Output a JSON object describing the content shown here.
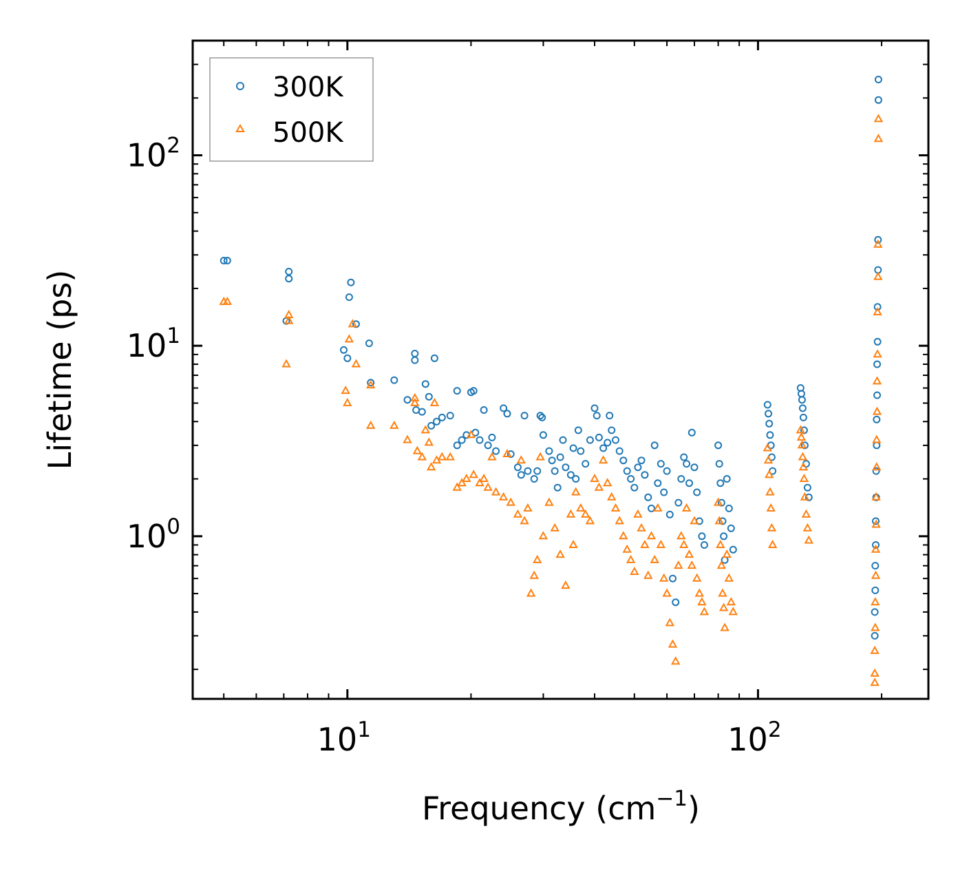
{
  "chart_data": {
    "type": "scatter",
    "title": "",
    "xlabel": "Frequency (cm",
    "xlabel_sup": "−1",
    "xlabel_tail": ")",
    "ylabel": "Lifetime (ps)",
    "xscale": "log",
    "yscale": "log",
    "xlim": [
      4.2,
      260
    ],
    "ylim": [
      0.14,
      400
    ],
    "xticks": [
      {
        "base": "10",
        "exp": "1",
        "value": 10
      },
      {
        "base": "10",
        "exp": "2",
        "value": 100
      }
    ],
    "yticks": [
      {
        "base": "10",
        "exp": "0",
        "value": 1
      },
      {
        "base": "10",
        "exp": "1",
        "value": 10
      },
      {
        "base": "10",
        "exp": "2",
        "value": 100
      }
    ],
    "legend_position": "top-left",
    "series": [
      {
        "name": "300K",
        "marker": "circle",
        "color": "#1f77b4",
        "points": [
          [
            5.0,
            28
          ],
          [
            5.1,
            28
          ],
          [
            7.2,
            24.5
          ],
          [
            7.2,
            22.5
          ],
          [
            7.1,
            13.5
          ],
          [
            10.2,
            21.5
          ],
          [
            10.1,
            18
          ],
          [
            9.8,
            9.5
          ],
          [
            10.5,
            13
          ],
          [
            10.0,
            8.6
          ],
          [
            11.3,
            10.3
          ],
          [
            11.4,
            6.4
          ],
          [
            13.0,
            6.6
          ],
          [
            14.0,
            5.2
          ],
          [
            14.6,
            9.1
          ],
          [
            14.6,
            8.4
          ],
          [
            14.7,
            4.6
          ],
          [
            15.2,
            4.5
          ],
          [
            15.5,
            6.3
          ],
          [
            15.8,
            5.4
          ],
          [
            16.0,
            3.8
          ],
          [
            16.3,
            8.6
          ],
          [
            16.5,
            4.0
          ],
          [
            17.0,
            4.2
          ],
          [
            17.8,
            4.3
          ],
          [
            18.5,
            5.8
          ],
          [
            18.5,
            3.0
          ],
          [
            19.0,
            3.2
          ],
          [
            19.5,
            3.4
          ],
          [
            20.0,
            5.7
          ],
          [
            20.3,
            5.8
          ],
          [
            20.5,
            3.5
          ],
          [
            21.0,
            3.2
          ],
          [
            21.5,
            4.6
          ],
          [
            22.0,
            3.0
          ],
          [
            22.5,
            3.3
          ],
          [
            23.0,
            2.8
          ],
          [
            24.0,
            4.7
          ],
          [
            24.5,
            4.4
          ],
          [
            25.0,
            2.7
          ],
          [
            26.0,
            2.3
          ],
          [
            26.5,
            2.1
          ],
          [
            27.0,
            4.3
          ],
          [
            27.5,
            2.2
          ],
          [
            28.5,
            2.0
          ],
          [
            29.0,
            2.2
          ],
          [
            29.5,
            4.3
          ],
          [
            29.8,
            4.2
          ],
          [
            30.0,
            3.4
          ],
          [
            31.0,
            2.8
          ],
          [
            31.5,
            2.5
          ],
          [
            32.0,
            2.2
          ],
          [
            32.5,
            1.8
          ],
          [
            33.0,
            2.6
          ],
          [
            33.5,
            3.2
          ],
          [
            34.0,
            2.3
          ],
          [
            35.0,
            2.1
          ],
          [
            35.5,
            2.9
          ],
          [
            36.0,
            2.0
          ],
          [
            36.5,
            3.6
          ],
          [
            37.0,
            2.8
          ],
          [
            38.0,
            2.4
          ],
          [
            39.0,
            3.2
          ],
          [
            40.0,
            4.7
          ],
          [
            40.5,
            4.3
          ],
          [
            41.0,
            3.3
          ],
          [
            42.0,
            2.9
          ],
          [
            43.0,
            3.1
          ],
          [
            43.5,
            4.3
          ],
          [
            44.0,
            3.6
          ],
          [
            45.0,
            3.2
          ],
          [
            46.0,
            2.8
          ],
          [
            47.0,
            2.5
          ],
          [
            48.0,
            2.2
          ],
          [
            49.0,
            2.0
          ],
          [
            50.0,
            1.8
          ],
          [
            51.0,
            2.3
          ],
          [
            52.0,
            2.5
          ],
          [
            53.0,
            2.1
          ],
          [
            54.0,
            1.6
          ],
          [
            55.0,
            1.4
          ],
          [
            56.0,
            3.0
          ],
          [
            57.0,
            1.9
          ],
          [
            58.0,
            2.4
          ],
          [
            59.0,
            1.7
          ],
          [
            60.0,
            2.2
          ],
          [
            61.0,
            1.3
          ],
          [
            62.0,
            0.6
          ],
          [
            63.0,
            0.45
          ],
          [
            64.0,
            1.5
          ],
          [
            65.0,
            2.0
          ],
          [
            66.0,
            2.6
          ],
          [
            67.0,
            2.4
          ],
          [
            68.0,
            1.9
          ],
          [
            69.0,
            3.5
          ],
          [
            70.0,
            2.3
          ],
          [
            71.0,
            1.7
          ],
          [
            72.0,
            1.2
          ],
          [
            73.0,
            1.0
          ],
          [
            74.0,
            0.9
          ],
          [
            80.0,
            3.0
          ],
          [
            80.5,
            2.4
          ],
          [
            81.0,
            1.9
          ],
          [
            81.5,
            1.5
          ],
          [
            82.0,
            1.2
          ],
          [
            82.5,
            1.0
          ],
          [
            83.0,
            0.75
          ],
          [
            84.0,
            2.0
          ],
          [
            85.0,
            1.4
          ],
          [
            86.0,
            1.1
          ],
          [
            87.0,
            0.85
          ],
          [
            105.5,
            4.9
          ],
          [
            106.0,
            4.4
          ],
          [
            106.5,
            3.9
          ],
          [
            107.0,
            3.4
          ],
          [
            107.5,
            3.0
          ],
          [
            108.0,
            2.6
          ],
          [
            108.5,
            2.2
          ],
          [
            127.0,
            6.0
          ],
          [
            127.5,
            5.6
          ],
          [
            128.0,
            5.2
          ],
          [
            128.5,
            4.7
          ],
          [
            129.0,
            4.2
          ],
          [
            129.5,
            3.6
          ],
          [
            130.0,
            3.0
          ],
          [
            131.0,
            2.4
          ],
          [
            132.0,
            1.8
          ],
          [
            133.0,
            1.6
          ],
          [
            196.5,
            250
          ],
          [
            196.5,
            195
          ],
          [
            196.0,
            36
          ],
          [
            196.0,
            25
          ],
          [
            195.5,
            16
          ],
          [
            195.5,
            10.5
          ],
          [
            195.0,
            8
          ],
          [
            195.0,
            5.5
          ],
          [
            194.5,
            4.1
          ],
          [
            194.5,
            3.0
          ],
          [
            194.0,
            2.2
          ],
          [
            194.0,
            1.6
          ],
          [
            193.5,
            1.2
          ],
          [
            193.5,
            0.9
          ],
          [
            193.0,
            0.7
          ],
          [
            193.0,
            0.52
          ],
          [
            192.5,
            0.4
          ],
          [
            192.5,
            0.3
          ]
        ]
      },
      {
        "name": "500K",
        "marker": "triangle",
        "color": "#ff7f0e",
        "points": [
          [
            5.0,
            17
          ],
          [
            5.1,
            17
          ],
          [
            7.2,
            14.5
          ],
          [
            7.2,
            13.5
          ],
          [
            7.1,
            8
          ],
          [
            10.3,
            13
          ],
          [
            10.1,
            10.8
          ],
          [
            9.9,
            5.8
          ],
          [
            10.0,
            5.0
          ],
          [
            10.5,
            8
          ],
          [
            11.4,
            6.2
          ],
          [
            11.4,
            3.8
          ],
          [
            13.0,
            3.8
          ],
          [
            14.0,
            3.2
          ],
          [
            14.6,
            5.3
          ],
          [
            14.6,
            5.0
          ],
          [
            14.8,
            2.8
          ],
          [
            15.2,
            2.6
          ],
          [
            15.5,
            3.6
          ],
          [
            15.8,
            3.1
          ],
          [
            16.0,
            2.3
          ],
          [
            16.3,
            5.0
          ],
          [
            16.5,
            2.5
          ],
          [
            17.0,
            2.6
          ],
          [
            17.8,
            2.6
          ],
          [
            18.5,
            1.8
          ],
          [
            19.0,
            1.9
          ],
          [
            19.5,
            2.0
          ],
          [
            20.0,
            3.4
          ],
          [
            20.3,
            2.1
          ],
          [
            21.0,
            1.9
          ],
          [
            21.5,
            2.0
          ],
          [
            22.0,
            1.8
          ],
          [
            22.5,
            2.6
          ],
          [
            23.0,
            1.7
          ],
          [
            24.0,
            1.6
          ],
          [
            24.5,
            2.7
          ],
          [
            25.0,
            1.5
          ],
          [
            26.0,
            1.3
          ],
          [
            26.5,
            2.5
          ],
          [
            27.0,
            1.2
          ],
          [
            27.5,
            1.4
          ],
          [
            28.0,
            0.5
          ],
          [
            28.5,
            0.62
          ],
          [
            29.0,
            0.75
          ],
          [
            29.5,
            2.6
          ],
          [
            30.0,
            1.0
          ],
          [
            31.0,
            1.5
          ],
          [
            32.0,
            1.1
          ],
          [
            33.0,
            0.8
          ],
          [
            34.0,
            0.55
          ],
          [
            35.0,
            1.3
          ],
          [
            35.5,
            0.9
          ],
          [
            36.0,
            1.7
          ],
          [
            37.0,
            1.4
          ],
          [
            38.0,
            1.3
          ],
          [
            39.0,
            1.2
          ],
          [
            40.0,
            2.0
          ],
          [
            41.0,
            1.8
          ],
          [
            42.0,
            2.5
          ],
          [
            43.0,
            1.9
          ],
          [
            44.0,
            1.6
          ],
          [
            45.0,
            1.4
          ],
          [
            46.0,
            1.2
          ],
          [
            47.0,
            1.0
          ],
          [
            48.0,
            0.85
          ],
          [
            49.0,
            0.75
          ],
          [
            50.0,
            0.65
          ],
          [
            51.0,
            1.3
          ],
          [
            52.0,
            1.1
          ],
          [
            53.0,
            0.9
          ],
          [
            54.0,
            0.62
          ],
          [
            55.0,
            1.0
          ],
          [
            56.0,
            0.75
          ],
          [
            57.0,
            1.4
          ],
          [
            58.0,
            0.9
          ],
          [
            59.0,
            0.6
          ],
          [
            60.0,
            0.5
          ],
          [
            61.0,
            0.35
          ],
          [
            62.0,
            0.27
          ],
          [
            63.0,
            0.22
          ],
          [
            64.0,
            0.7
          ],
          [
            65.0,
            1.0
          ],
          [
            66.0,
            0.9
          ],
          [
            67.0,
            1.4
          ],
          [
            68.0,
            0.8
          ],
          [
            69.0,
            0.7
          ],
          [
            70.0,
            1.2
          ],
          [
            71.0,
            0.6
          ],
          [
            72.0,
            0.5
          ],
          [
            73.0,
            0.45
          ],
          [
            74.0,
            0.4
          ],
          [
            80.0,
            1.5
          ],
          [
            80.5,
            1.2
          ],
          [
            81.0,
            0.9
          ],
          [
            81.5,
            0.7
          ],
          [
            82.0,
            0.5
          ],
          [
            82.5,
            0.42
          ],
          [
            83.0,
            0.33
          ],
          [
            84.0,
            0.8
          ],
          [
            85.0,
            0.6
          ],
          [
            86.0,
            0.45
          ],
          [
            87.0,
            0.4
          ],
          [
            105.5,
            2.9
          ],
          [
            106.0,
            2.5
          ],
          [
            106.5,
            2.1
          ],
          [
            107.0,
            1.7
          ],
          [
            107.5,
            1.4
          ],
          [
            108.0,
            1.1
          ],
          [
            108.5,
            0.9
          ],
          [
            127.0,
            3.6
          ],
          [
            127.5,
            3.3
          ],
          [
            128.0,
            3.0
          ],
          [
            128.5,
            2.6
          ],
          [
            129.0,
            2.3
          ],
          [
            129.5,
            2.0
          ],
          [
            130.0,
            1.6
          ],
          [
            131.0,
            1.3
          ],
          [
            132.0,
            1.1
          ],
          [
            133.0,
            0.95
          ],
          [
            196.5,
            155
          ],
          [
            196.5,
            122
          ],
          [
            196.0,
            34
          ],
          [
            196.0,
            23
          ],
          [
            195.5,
            15
          ],
          [
            195.5,
            9
          ],
          [
            195.0,
            6.5
          ],
          [
            195.0,
            4.5
          ],
          [
            194.5,
            3.2
          ],
          [
            194.5,
            2.3
          ],
          [
            194.0,
            1.6
          ],
          [
            194.0,
            1.15
          ],
          [
            193.5,
            0.85
          ],
          [
            193.5,
            0.62
          ],
          [
            193.0,
            0.45
          ],
          [
            193.0,
            0.33
          ],
          [
            192.5,
            0.25
          ],
          [
            192.5,
            0.19
          ],
          [
            192.5,
            0.17
          ]
        ]
      }
    ]
  }
}
